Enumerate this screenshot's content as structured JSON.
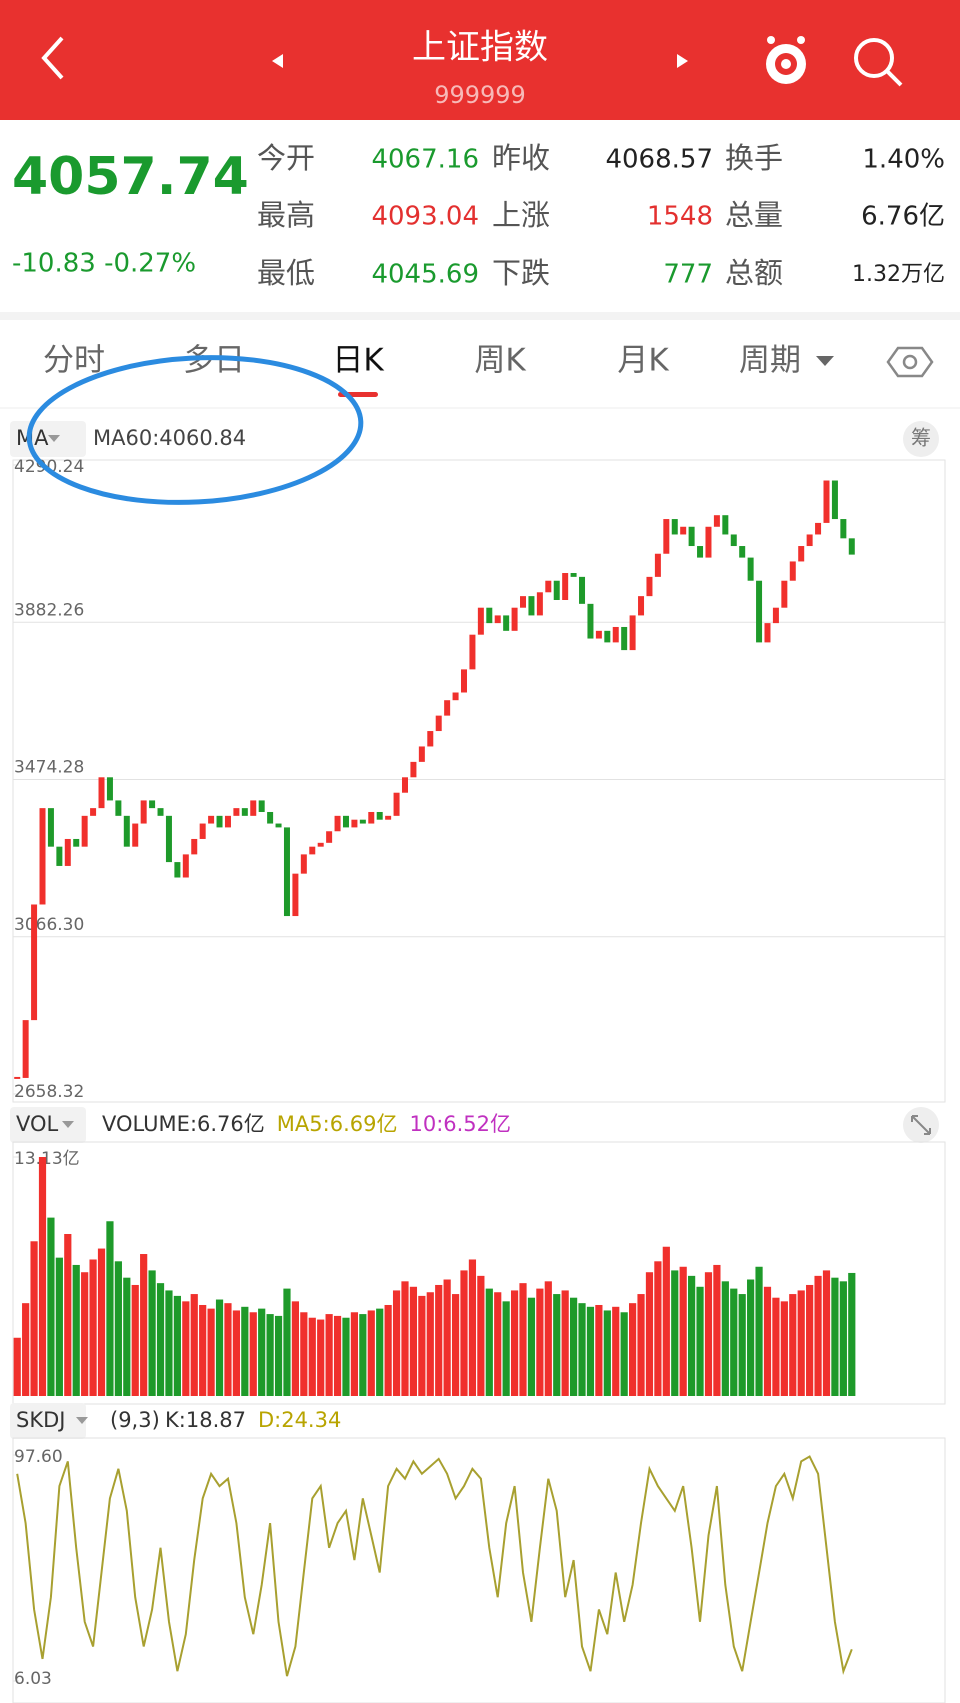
{
  "header": {
    "title": "上证指数",
    "code": "999999"
  },
  "quote": {
    "price": "4057.74",
    "change": "-10.83 -0.27%",
    "fields": [
      {
        "label": "今开",
        "value": "4067.16",
        "color": "#1a9a2e"
      },
      {
        "label": "昨收",
        "value": "4068.57",
        "color": "#222222"
      },
      {
        "label": "换手",
        "value": "1.40%",
        "color": "#222222"
      },
      {
        "label": "最高",
        "value": "4093.04",
        "color": "#e3302f"
      },
      {
        "label": "上涨",
        "value": "1548",
        "color": "#e3302f"
      },
      {
        "label": "总量",
        "value": "6.76亿",
        "color": "#222222"
      },
      {
        "label": "最低",
        "value": "4045.69",
        "color": "#1a9a2e"
      },
      {
        "label": "下跌",
        "value": "777",
        "color": "#1a9a2e"
      },
      {
        "label": "总额",
        "value": "1.32万亿",
        "color": "#222222"
      }
    ]
  },
  "tabs": [
    "分时",
    "多日",
    "日K",
    "周K",
    "月K",
    "周期"
  ],
  "selected_tab": 2,
  "chip_button": "筹",
  "chart_data": [
    {
      "type": "candlestick",
      "indicator": "MA",
      "legend": "MA60:4060.84",
      "color_up": "#f0302c",
      "color_down": "#1e9a2a",
      "values": [
        2700,
        2850,
        3150,
        3400,
        3300,
        3250,
        3320,
        3300,
        3380,
        3400,
        3480,
        3420,
        3380,
        3300,
        3360,
        3420,
        3400,
        3380,
        3260,
        3220,
        3280,
        3320,
        3360,
        3380,
        3350,
        3380,
        3400,
        3380,
        3420,
        3390,
        3360,
        3350,
        3120,
        3230,
        3280,
        3300,
        3310,
        3340,
        3380,
        3350,
        3370,
        3360,
        3390,
        3370,
        3380,
        3440,
        3480,
        3520,
        3560,
        3600,
        3640,
        3680,
        3700,
        3760,
        3850,
        3920,
        3880,
        3900,
        3860,
        3920,
        3950,
        3900,
        3960,
        3990,
        3940,
        4010,
        4000,
        3930,
        3840,
        3860,
        3830,
        3870,
        3810,
        3900,
        3950,
        4000,
        4060,
        4150,
        4110,
        4130,
        4080,
        4050,
        4130,
        4160,
        4110,
        4080,
        4050,
        3990,
        3830,
        3880,
        3920,
        3990,
        4040,
        4080,
        4110,
        4140,
        4250,
        4150,
        4100,
        4057.74
      ],
      "ylim": [
        2658.32,
        4290.24
      ],
      "yticks": [
        2658.32,
        {
          "value": 3066.3,
          "label": "3066.30"
        },
        3474.28,
        3882.26,
        4290.24
      ]
    },
    {
      "type": "bar",
      "indicator": "VOL",
      "legend": [
        "VOLUME:6.76亿",
        "MA5:6.69亿",
        "10:6.52亿"
      ],
      "legend_colors": [
        "#333333",
        "#b8a400",
        "#c030c0"
      ],
      "values": [
        3.2,
        5.1,
        8.5,
        13.13,
        9.8,
        7.6,
        8.9,
        7.2,
        6.8,
        7.5,
        8.1,
        9.6,
        7.4,
        6.5,
        6.1,
        7.8,
        6.9,
        6.2,
        5.8,
        5.5,
        5.2,
        5.6,
        5.0,
        4.8,
        5.3,
        5.1,
        4.7,
        4.9,
        4.6,
        4.8,
        4.5,
        4.4,
        5.9,
        5.2,
        4.6,
        4.3,
        4.2,
        4.5,
        4.4,
        4.3,
        4.6,
        4.5,
        4.7,
        4.8,
        5.0,
        5.8,
        6.3,
        6.0,
        5.5,
        5.7,
        6.1,
        6.4,
        5.6,
        6.9,
        7.5,
        6.6,
        5.9,
        5.7,
        5.2,
        5.8,
        6.2,
        5.4,
        5.9,
        6.3,
        5.6,
        5.8,
        5.4,
        5.1,
        4.9,
        5.0,
        4.7,
        4.9,
        4.6,
        5.1,
        5.6,
        6.8,
        7.4,
        8.2,
        6.9,
        7.1,
        6.6,
        6.0,
        6.8,
        7.2,
        6.3,
        5.9,
        5.6,
        6.4,
        7.1,
        6.0,
        5.4,
        5.2,
        5.6,
        5.8,
        6.1,
        6.6,
        6.9,
        6.5,
        6.3,
        6.76
      ],
      "ylim": [
        0,
        13.13
      ],
      "yticks": [
        {
          "value": 13.13,
          "label": "13.13亿"
        }
      ]
    },
    {
      "type": "line",
      "indicator": "SKDJ",
      "params": "(9,3)",
      "legend": [
        "K:18.87",
        "D:24.34"
      ],
      "legend_colors": [
        "#333333",
        "#b8a400"
      ],
      "color": "#a8a030",
      "values": [
        90,
        70,
        35,
        15,
        40,
        85,
        95,
        60,
        30,
        20,
        50,
        80,
        92,
        75,
        40,
        20,
        35,
        60,
        30,
        10,
        25,
        55,
        80,
        90,
        85,
        88,
        70,
        40,
        25,
        45,
        70,
        30,
        8,
        20,
        50,
        80,
        85,
        60,
        70,
        75,
        55,
        80,
        65,
        50,
        85,
        92,
        88,
        95,
        90,
        93,
        96,
        90,
        80,
        85,
        92,
        88,
        60,
        40,
        70,
        85,
        50,
        30,
        60,
        88,
        75,
        40,
        55,
        20,
        10,
        35,
        25,
        50,
        30,
        45,
        70,
        92,
        85,
        80,
        75,
        85,
        60,
        30,
        65,
        85,
        45,
        20,
        10,
        30,
        50,
        70,
        85,
        90,
        80,
        95,
        97,
        90,
        60,
        30,
        10,
        18.87
      ],
      "ylim": [
        6.03,
        97.6
      ],
      "yticks": [
        6.03,
        {
          "value": 97.6,
          "label": "97.60"
        }
      ]
    }
  ]
}
